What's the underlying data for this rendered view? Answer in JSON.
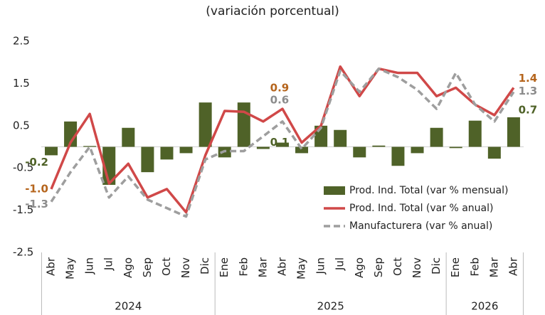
{
  "chart_data": {
    "type": "combo",
    "title": "(variación porcentual)",
    "categories": [
      "Abr",
      "May",
      "Jun",
      "Jul",
      "Ago",
      "Sep",
      "Oct",
      "Nov",
      "Dic",
      "Ene",
      "Feb",
      "Mar",
      "Abr",
      "May",
      "Jun",
      "Jul",
      "Ago",
      "Sep",
      "Oct",
      "Nov",
      "Dic",
      "Ene",
      "Feb",
      "Mar",
      "Abr"
    ],
    "groups": [
      {
        "label": "2024",
        "span": 9
      },
      {
        "label": "2025",
        "span": 12
      },
      {
        "label": "2026",
        "span": 4
      }
    ],
    "ylim": [
      -2.5,
      2.5
    ],
    "yticks": [
      2.5,
      1.5,
      0.5,
      -0.5,
      -1.5,
      -2.5
    ],
    "series": [
      {
        "name": "Prod. Ind. Total (var % mensual)",
        "type": "bar",
        "color": "#4f6228",
        "label_color": "#4f6228",
        "values": [
          -0.2,
          0.6,
          0.02,
          -0.9,
          0.45,
          -0.6,
          -0.3,
          -0.15,
          1.05,
          -0.25,
          1.05,
          -0.05,
          0.1,
          -0.15,
          0.5,
          0.4,
          -0.25,
          0.03,
          -0.45,
          -0.15,
          0.45,
          -0.03,
          0.62,
          -0.28,
          0.7
        ],
        "value_labels": [
          "-0.2",
          null,
          null,
          null,
          null,
          null,
          null,
          null,
          null,
          null,
          null,
          null,
          "0.1",
          null,
          null,
          null,
          null,
          null,
          null,
          null,
          null,
          null,
          null,
          null,
          "0.7"
        ]
      },
      {
        "name": "Prod. Ind. Total (var % anual)",
        "type": "line",
        "color": "#d04848",
        "label_color": "#b5651d",
        "values": [
          -1.0,
          0.1,
          0.78,
          -0.87,
          -0.4,
          -1.2,
          -1.0,
          -1.55,
          -0.2,
          0.85,
          0.83,
          0.6,
          0.9,
          0.1,
          0.5,
          1.9,
          1.2,
          1.85,
          1.75,
          1.75,
          1.2,
          1.4,
          1.0,
          0.75,
          1.4
        ],
        "value_labels": [
          "-1.0",
          null,
          null,
          null,
          null,
          null,
          null,
          null,
          null,
          null,
          null,
          null,
          "0.9",
          null,
          null,
          null,
          null,
          null,
          null,
          null,
          null,
          null,
          null,
          null,
          "1.4"
        ]
      },
      {
        "name": "Manufacturera (var % anual)",
        "type": "dashed-line",
        "color": "#9e9e9e",
        "label_color": "#8c8c8c",
        "values": [
          -1.3,
          -0.6,
          0.0,
          -1.2,
          -0.7,
          -1.25,
          -1.45,
          -1.65,
          -0.3,
          -0.1,
          -0.1,
          0.25,
          0.6,
          -0.05,
          0.45,
          1.8,
          1.3,
          1.85,
          1.65,
          1.35,
          0.9,
          1.75,
          1.0,
          0.6,
          1.3
        ],
        "value_labels": [
          "-1.3",
          null,
          null,
          null,
          null,
          null,
          null,
          null,
          null,
          null,
          null,
          null,
          "0.6",
          null,
          null,
          null,
          null,
          null,
          null,
          null,
          null,
          null,
          null,
          null,
          "1.3"
        ]
      }
    ]
  }
}
